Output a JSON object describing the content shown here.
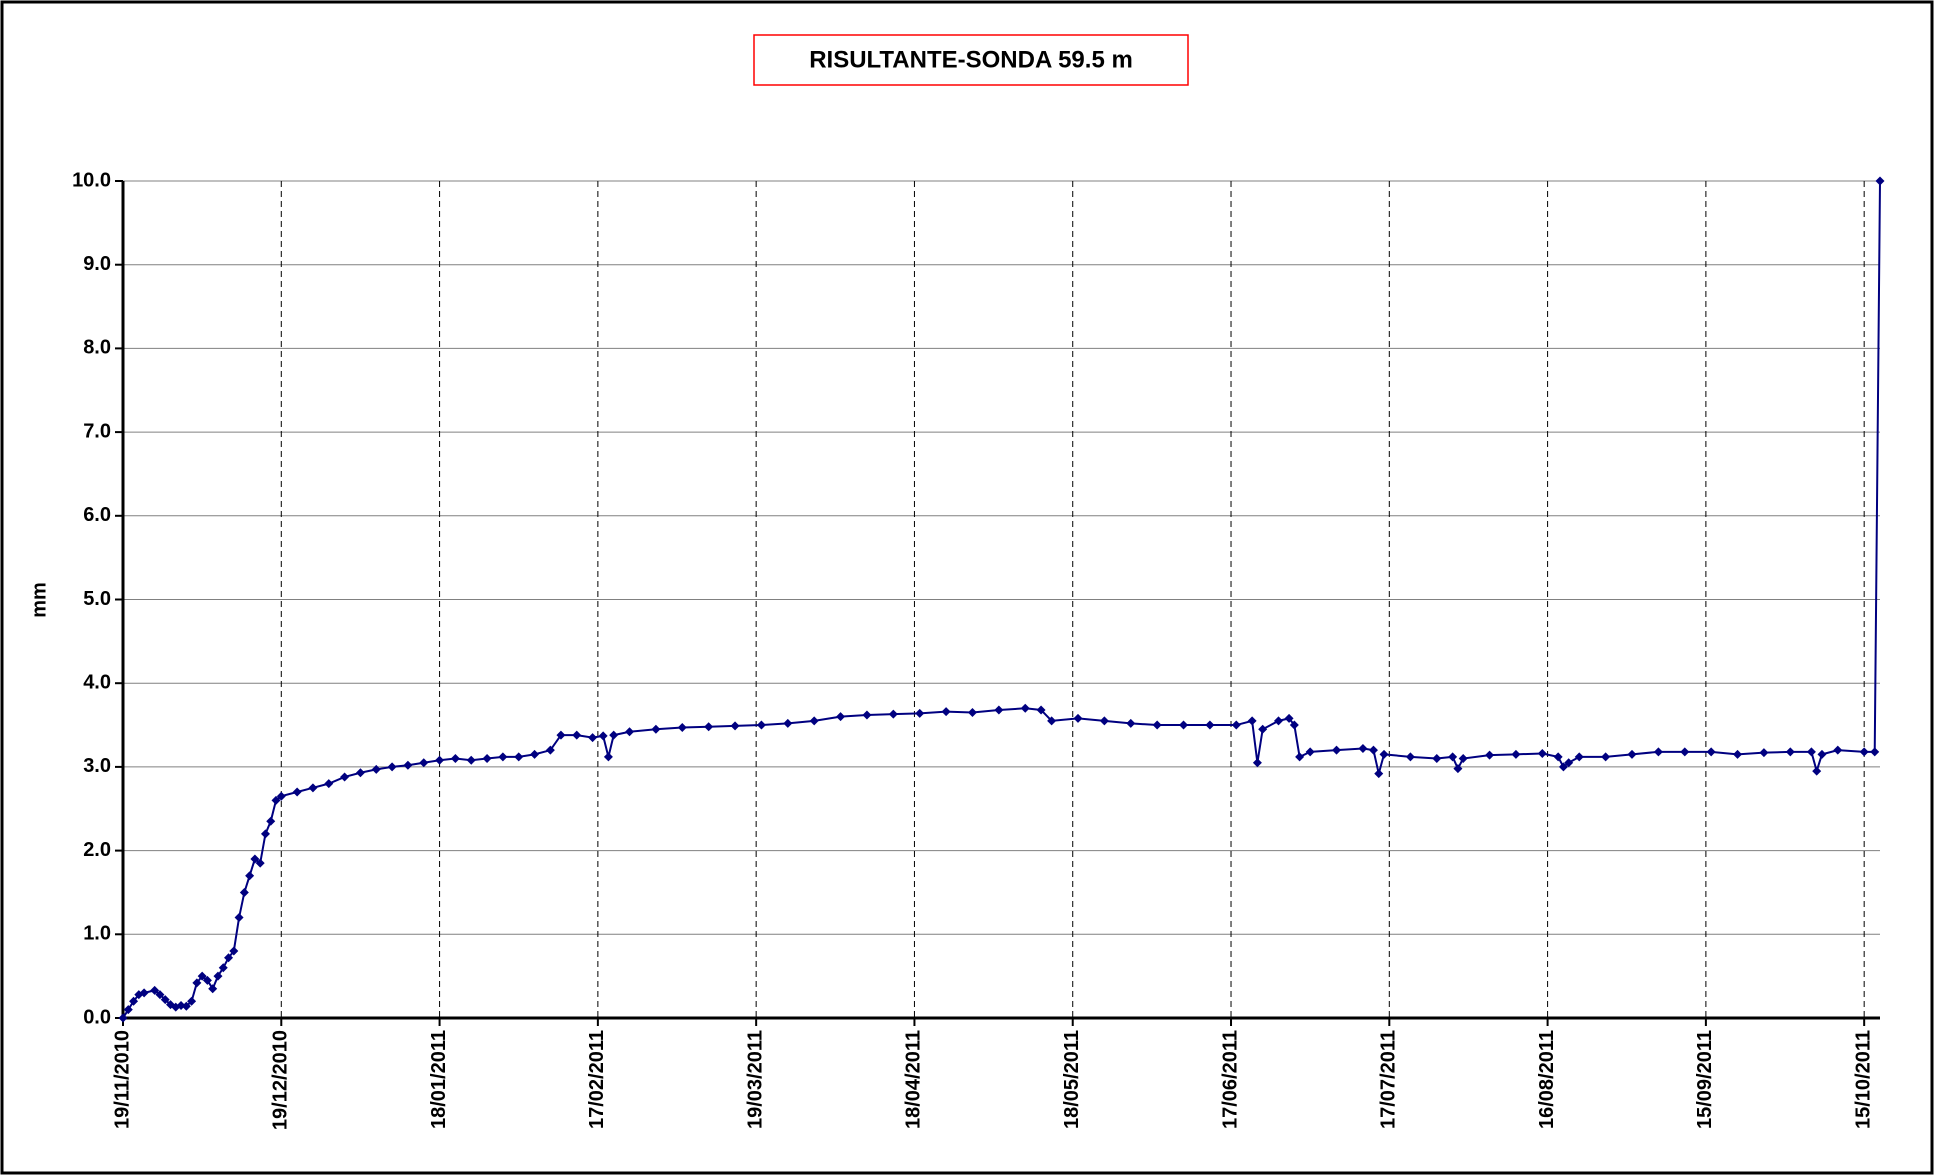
{
  "chart_data": {
    "type": "line",
    "title": "RISULTANTE-SONDA 59.5 m",
    "y_label": "mm",
    "series": [
      {
        "name": null,
        "color": "#000080",
        "marker": "diamond",
        "x": [
          "19/11/2010",
          "20/11/2010",
          "21/11/2010",
          "22/11/2010",
          "23/11/2010",
          "25/11/2010",
          "26/11/2010",
          "27/11/2010",
          "28/11/2010",
          "29/11/2010",
          "30/11/2010",
          "01/12/2010",
          "02/12/2010",
          "03/12/2010",
          "04/12/2010",
          "05/12/2010",
          "06/12/2010",
          "07/12/2010",
          "08/12/2010",
          "09/12/2010",
          "10/12/2010",
          "11/12/2010",
          "12/12/2010",
          "13/12/2010",
          "14/12/2010",
          "15/12/2010",
          "16/12/2010",
          "17/12/2010",
          "18/12/2010",
          "19/12/2010",
          "22/12/2010",
          "25/12/2010",
          "28/12/2010",
          "31/12/2010",
          "03/01/2011",
          "06/01/2011",
          "09/01/2011",
          "12/01/2011",
          "15/01/2011",
          "18/01/2011",
          "21/01/2011",
          "24/01/2011",
          "27/01/2011",
          "30/01/2011",
          "02/02/2011",
          "05/02/2011",
          "08/02/2011",
          "10/02/2011",
          "13/02/2011",
          "16/02/2011",
          "18/02/2011",
          "19/02/2011",
          "20/02/2011",
          "23/02/2011",
          "28/02/2011",
          "05/03/2011",
          "10/03/2011",
          "15/03/2011",
          "20/03/2011",
          "25/03/2011",
          "30/03/2011",
          "04/04/2011",
          "09/04/2011",
          "14/04/2011",
          "19/04/2011",
          "24/04/2011",
          "29/04/2011",
          "04/05/2011",
          "09/05/2011",
          "12/05/2011",
          "14/05/2011",
          "19/05/2011",
          "24/05/2011",
          "29/05/2011",
          "03/06/2011",
          "08/06/2011",
          "13/06/2011",
          "18/06/2011",
          "21/06/2011",
          "22/06/2011",
          "23/06/2011",
          "26/06/2011",
          "28/06/2011",
          "29/06/2011",
          "30/06/2011",
          "02/07/2011",
          "07/07/2011",
          "12/07/2011",
          "14/07/2011",
          "15/07/2011",
          "16/07/2011",
          "21/07/2011",
          "26/07/2011",
          "29/07/2011",
          "30/07/2011",
          "31/07/2011",
          "05/08/2011",
          "10/08/2011",
          "15/08/2011",
          "18/08/2011",
          "19/08/2011",
          "20/08/2011",
          "22/08/2011",
          "27/08/2011",
          "01/09/2011",
          "06/09/2011",
          "11/09/2011",
          "16/09/2011",
          "21/09/2011",
          "26/09/2011",
          "01/10/2011",
          "05/10/2011",
          "06/10/2011",
          "07/10/2011",
          "10/10/2011",
          "15/10/2011",
          "17/10/2011",
          "18/10/2011"
        ],
        "values": [
          0.0,
          0.1,
          0.2,
          0.28,
          0.3,
          0.33,
          0.28,
          0.22,
          0.16,
          0.13,
          0.15,
          0.14,
          0.2,
          0.42,
          0.5,
          0.45,
          0.35,
          0.5,
          0.6,
          0.72,
          0.8,
          1.2,
          1.5,
          1.7,
          1.9,
          1.85,
          2.2,
          2.35,
          2.6,
          2.65,
          2.7,
          2.75,
          2.8,
          2.88,
          2.93,
          2.97,
          3.0,
          3.02,
          3.05,
          3.08,
          3.1,
          3.08,
          3.1,
          3.12,
          3.12,
          3.15,
          3.2,
          3.38,
          3.38,
          3.35,
          3.37,
          3.12,
          3.38,
          3.42,
          3.45,
          3.47,
          3.48,
          3.49,
          3.5,
          3.52,
          3.55,
          3.6,
          3.62,
          3.63,
          3.64,
          3.66,
          3.65,
          3.68,
          3.7,
          3.68,
          3.55,
          3.58,
          3.55,
          3.52,
          3.5,
          3.5,
          3.5,
          3.5,
          3.55,
          3.05,
          3.45,
          3.55,
          3.58,
          3.5,
          3.12,
          3.18,
          3.2,
          3.22,
          3.2,
          2.92,
          3.15,
          3.12,
          3.1,
          3.12,
          2.98,
          3.1,
          3.14,
          3.15,
          3.16,
          3.12,
          3.0,
          3.05,
          3.12,
          3.12,
          3.15,
          3.18,
          3.18,
          3.18,
          3.15,
          3.17,
          3.18,
          3.18,
          2.95,
          3.15,
          3.2,
          3.18,
          3.18,
          10.0
        ]
      }
    ],
    "xlim": [
      "19/11/2010",
      "18/10/2011"
    ],
    "xticks": [
      "19/11/2010",
      "19/12/2010",
      "18/01/2011",
      "17/02/2011",
      "19/03/2011",
      "18/04/2011",
      "18/05/2011",
      "17/06/2011",
      "17/07/2011",
      "16/08/2011",
      "15/09/2011",
      "15/10/2011"
    ],
    "ylim": [
      0,
      10
    ],
    "yticks": [
      {
        "value": 0,
        "label": "0.0"
      },
      {
        "value": 1,
        "label": "1.0"
      },
      {
        "value": 2,
        "label": "2.0"
      },
      {
        "value": 3,
        "label": "3.0"
      },
      {
        "value": 4,
        "label": "4.0"
      },
      {
        "value": 5,
        "label": "5.0"
      },
      {
        "value": 6,
        "label": "6.0"
      },
      {
        "value": 7,
        "label": "7.0"
      },
      {
        "value": 8,
        "label": "8.0"
      },
      {
        "value": 9,
        "label": "9.0"
      },
      {
        "value": 10,
        "label": "10.0"
      }
    ],
    "grid": true
  }
}
